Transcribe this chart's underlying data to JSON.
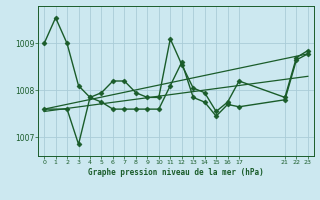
{
  "title": "Graphe pression niveau de la mer (hPa)",
  "bg_color": "#cce8f0",
  "grid_color": "#aaccd8",
  "line_color": "#1a5c2a",
  "ylim": [
    1006.6,
    1009.8
  ],
  "xlim": [
    -0.5,
    23.5
  ],
  "yticks": [
    1007,
    1008,
    1009
  ],
  "xticks": [
    0,
    1,
    2,
    3,
    4,
    5,
    6,
    7,
    8,
    9,
    10,
    11,
    12,
    13,
    14,
    15,
    16,
    17,
    21,
    22,
    23
  ],
  "xtick_labels": [
    "0",
    "1",
    "2",
    "3",
    "4",
    "5",
    "6",
    "7",
    "8",
    "9",
    "10",
    "11",
    "12",
    "13",
    "14",
    "15",
    "16",
    "17",
    "21",
    "22",
    "23"
  ],
  "series": [
    {
      "x": [
        0,
        1,
        2,
        3,
        4,
        5,
        6,
        7,
        8,
        9,
        10,
        11,
        12,
        13,
        14,
        15,
        16,
        17,
        21,
        22,
        23
      ],
      "y": [
        1009.0,
        1009.55,
        1009.0,
        1008.1,
        1007.85,
        1007.95,
        1008.2,
        1008.2,
        1007.95,
        1007.85,
        1007.85,
        1009.1,
        1008.55,
        1008.05,
        1007.95,
        1007.55,
        1007.75,
        1008.2,
        1007.85,
        1008.7,
        1008.85
      ],
      "marker": "D",
      "markersize": 2.5,
      "linewidth": 1.0
    },
    {
      "x": [
        0,
        2,
        3,
        4,
        5,
        6,
        7,
        8,
        9,
        10,
        11,
        12,
        13,
        14,
        15,
        16,
        17,
        21,
        22,
        23
      ],
      "y": [
        1007.6,
        1007.6,
        1006.85,
        1007.85,
        1007.75,
        1007.6,
        1007.6,
        1007.6,
        1007.6,
        1007.6,
        1008.1,
        1008.6,
        1007.85,
        1007.75,
        1007.45,
        1007.7,
        1007.65,
        1007.8,
        1008.65,
        1008.78
      ],
      "marker": "D",
      "markersize": 2.5,
      "linewidth": 1.0
    },
    {
      "x": [
        0,
        23
      ],
      "y": [
        1007.55,
        1008.3
      ],
      "marker": null,
      "markersize": 0,
      "linewidth": 0.9
    },
    {
      "x": [
        0,
        23
      ],
      "y": [
        1007.6,
        1008.78
      ],
      "marker": null,
      "markersize": 0,
      "linewidth": 0.9
    }
  ]
}
